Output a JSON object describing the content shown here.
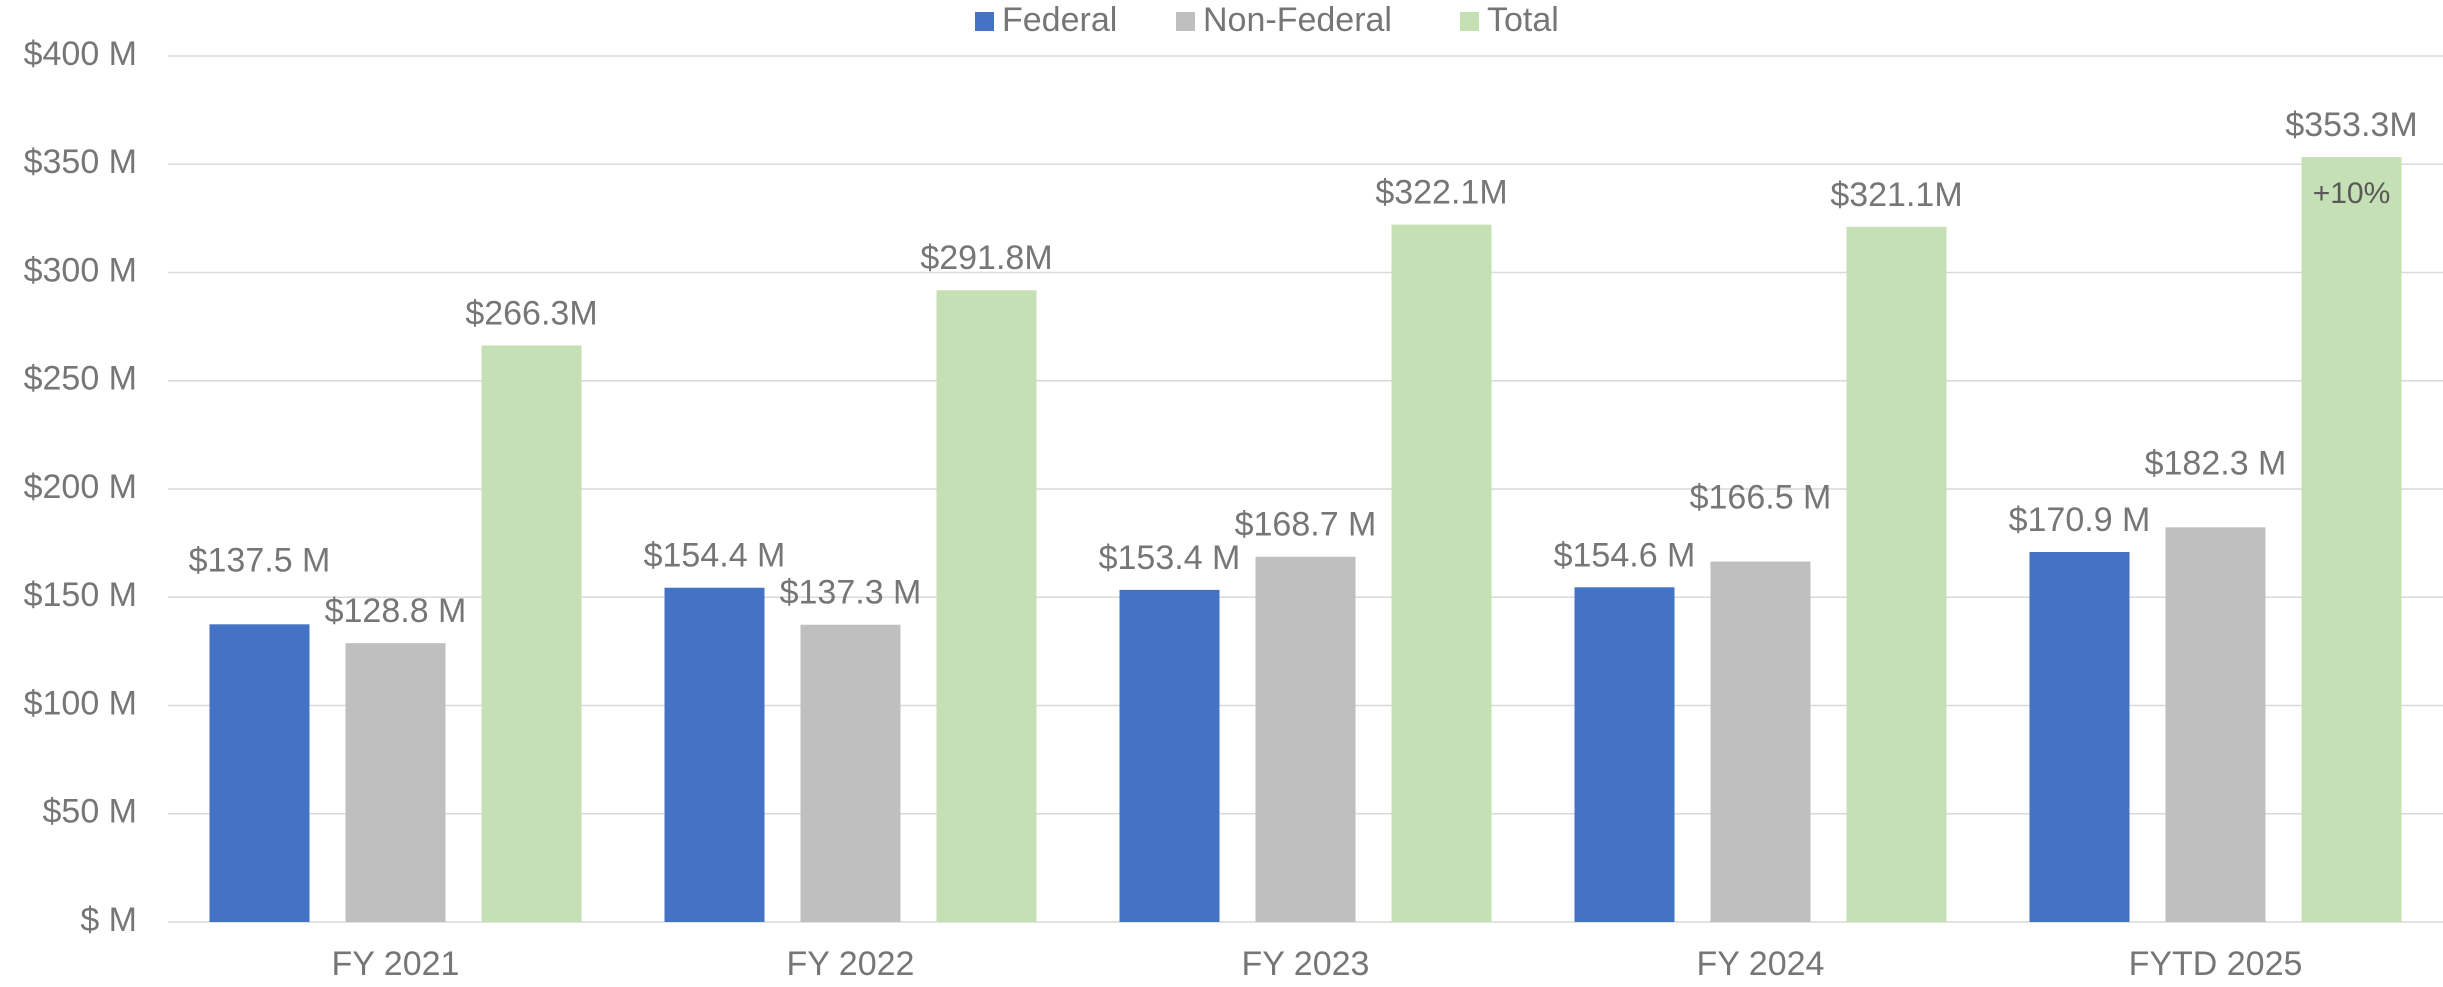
{
  "chart_data": {
    "type": "bar",
    "categories": [
      "FY 2021",
      "FY 2022",
      "FY 2023",
      "FY 2024",
      "FYTD 2025"
    ],
    "series": [
      {
        "name": "Federal",
        "color": "#4472c4",
        "values": [
          137.5,
          154.4,
          153.4,
          154.6,
          170.9
        ],
        "value_labels": [
          "$137.5 M",
          "$154.4 M",
          "$153.4 M",
          "$154.6 M",
          "$170.9 M"
        ]
      },
      {
        "name": "Non-Federal",
        "color": "#bfbfbf",
        "values": [
          128.8,
          137.3,
          168.7,
          166.5,
          182.3
        ],
        "value_labels": [
          "$128.8 M",
          "$137.3 M",
          "$168.7 M",
          "$166.5 M",
          "$182.3 M"
        ]
      },
      {
        "name": "Total",
        "color": "#c5e0b4",
        "values": [
          266.3,
          291.8,
          322.1,
          321.1,
          353.3
        ],
        "value_labels": [
          "$266.3M",
          "$291.8M",
          "$322.1M",
          "$321.1M",
          "$353.3M"
        ]
      }
    ],
    "annotations": [
      "+10%"
    ],
    "ylim": [
      0,
      400
    ],
    "yticks": [
      {
        "value": 0,
        "label": "$ M"
      },
      {
        "value": 50,
        "label": "$50 M"
      },
      {
        "value": 100,
        "label": "$100 M"
      },
      {
        "value": 150,
        "label": "$150 M"
      },
      {
        "value": 200,
        "label": "$200 M"
      },
      {
        "value": 250,
        "label": "$250 M"
      },
      {
        "value": 300,
        "label": "$300 M"
      },
      {
        "value": 350,
        "label": "$350 M"
      },
      {
        "value": 400,
        "label": "$400 M"
      }
    ],
    "grid": true,
    "legend": "top"
  }
}
